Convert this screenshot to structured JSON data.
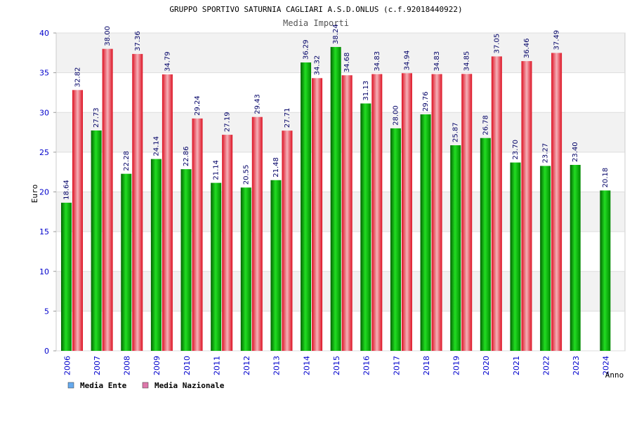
{
  "chart_data": {
    "type": "bar",
    "title": "GRUPPO SPORTIVO SATURNIA CAGLIARI A.S.D.ONLUS (c.f.92018440922)",
    "subtitle": "Media Importi",
    "ylabel": "Euro",
    "xlabel": "Anno",
    "ylim": [
      0,
      40
    ],
    "yticks": [
      0,
      5,
      10,
      15,
      20,
      25,
      30,
      35,
      40
    ],
    "grid": true,
    "legend_position": "bottom-left",
    "categories": [
      "2006",
      "2007",
      "2008",
      "2009",
      "2010",
      "2011",
      "2012",
      "2013",
      "2014",
      "2015",
      "2016",
      "2017",
      "2018",
      "2019",
      "2020",
      "2021",
      "2022",
      "2023",
      "2024"
    ],
    "series": [
      {
        "name": "Media Ente",
        "color": "#00aa00",
        "legend_color": "#66aaee",
        "values": [
          18.64,
          27.73,
          22.28,
          24.14,
          22.86,
          21.14,
          20.55,
          21.48,
          36.29,
          38.24,
          31.13,
          28.0,
          29.76,
          25.87,
          26.78,
          23.7,
          23.27,
          23.4,
          20.18
        ]
      },
      {
        "name": "Media Nazionale",
        "color": "#ee2233",
        "legend_color": "#dd77aa",
        "values": [
          32.82,
          38.0,
          37.36,
          34.79,
          29.24,
          27.19,
          29.43,
          27.71,
          34.32,
          34.68,
          34.83,
          34.94,
          34.83,
          34.85,
          37.05,
          36.46,
          37.49,
          null,
          null
        ]
      }
    ]
  }
}
